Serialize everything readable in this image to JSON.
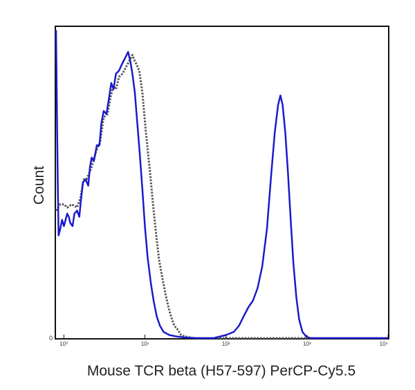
{
  "chart_data": {
    "type": "line",
    "title": "",
    "xlabel": "Mouse TCR beta (H57-597) PerCP-Cy5.5",
    "ylabel": "Count",
    "xscale": "log",
    "xlim": [
      0.8,
      10000
    ],
    "ylim": [
      0,
      100
    ],
    "grid": false,
    "legend": "none",
    "x_ticks": [
      {
        "value": 1,
        "label": "10⁰"
      },
      {
        "value": 10,
        "label": "10¹"
      },
      {
        "value": 100,
        "label": "10²"
      },
      {
        "value": 1000,
        "label": "10³"
      },
      {
        "value": 10000,
        "label": "10⁴"
      }
    ],
    "y_ticks": [
      {
        "value": 0,
        "label": "0"
      }
    ],
    "series": [
      {
        "color": "#555555",
        "style": "dotted",
        "points": [
          [
            0.8,
            41
          ],
          [
            0.9,
            43
          ],
          [
            1.0,
            43
          ],
          [
            1.1,
            42
          ],
          [
            1.25,
            43
          ],
          [
            1.45,
            42
          ],
          [
            1.6,
            45
          ],
          [
            1.75,
            51
          ],
          [
            1.9,
            51
          ],
          [
            2.05,
            53
          ],
          [
            2.2,
            55
          ],
          [
            2.5,
            60
          ],
          [
            2.8,
            63
          ],
          [
            3.1,
            71
          ],
          [
            3.45,
            72
          ],
          [
            3.8,
            78
          ],
          [
            4.1,
            81
          ],
          [
            4.4,
            80
          ],
          [
            4.8,
            84
          ],
          [
            5.3,
            85
          ],
          [
            5.8,
            87
          ],
          [
            6.4,
            89
          ],
          [
            7.0,
            91
          ],
          [
            7.5,
            89
          ],
          [
            7.9,
            88
          ],
          [
            8.5,
            86
          ],
          [
            9.3,
            79
          ],
          [
            10.3,
            66
          ],
          [
            11.5,
            54
          ],
          [
            12.7,
            42
          ],
          [
            13.8,
            33
          ],
          [
            15.0,
            25
          ],
          [
            16.5,
            19
          ],
          [
            18.0,
            14
          ],
          [
            19.5,
            10
          ],
          [
            21,
            7
          ],
          [
            23,
            4
          ],
          [
            25,
            3
          ],
          [
            28,
            1
          ],
          [
            32,
            0.5
          ],
          [
            40,
            0
          ],
          [
            10000,
            0
          ]
        ]
      },
      {
        "color": "#1a1acc",
        "style": "solid",
        "points": [
          [
            0.8,
            99
          ],
          [
            0.84,
            50
          ],
          [
            0.86,
            33
          ],
          [
            0.9,
            35
          ],
          [
            0.95,
            38
          ],
          [
            1.0,
            36
          ],
          [
            1.05,
            38
          ],
          [
            1.1,
            40
          ],
          [
            1.15,
            39
          ],
          [
            1.2,
            37
          ],
          [
            1.28,
            36
          ],
          [
            1.35,
            40
          ],
          [
            1.45,
            41
          ],
          [
            1.55,
            39
          ],
          [
            1.62,
            44
          ],
          [
            1.72,
            50
          ],
          [
            1.85,
            51
          ],
          [
            2.0,
            49
          ],
          [
            2.1,
            55
          ],
          [
            2.2,
            58
          ],
          [
            2.35,
            57
          ],
          [
            2.55,
            62
          ],
          [
            2.75,
            62
          ],
          [
            2.9,
            69
          ],
          [
            3.1,
            73
          ],
          [
            3.35,
            72
          ],
          [
            3.6,
            77
          ],
          [
            3.85,
            82
          ],
          [
            4.1,
            80
          ],
          [
            4.4,
            85
          ],
          [
            4.8,
            86
          ],
          [
            5.2,
            88
          ],
          [
            5.7,
            90
          ],
          [
            6.2,
            92
          ],
          [
            6.6,
            89
          ],
          [
            7.0,
            85
          ],
          [
            7.5,
            79
          ],
          [
            8.0,
            70
          ],
          [
            8.6,
            60
          ],
          [
            9.3,
            48
          ],
          [
            10.0,
            36
          ],
          [
            10.8,
            26
          ],
          [
            11.8,
            18
          ],
          [
            12.8,
            12
          ],
          [
            14.0,
            7
          ],
          [
            15.3,
            4
          ],
          [
            17,
            2
          ],
          [
            20,
            1
          ],
          [
            25,
            0.5
          ],
          [
            32,
            0.2
          ],
          [
            45,
            0
          ],
          [
            70,
            0
          ],
          [
            100,
            1
          ],
          [
            125,
            2
          ],
          [
            145,
            4
          ],
          [
            165,
            7
          ],
          [
            190,
            10
          ],
          [
            215,
            12
          ],
          [
            245,
            16
          ],
          [
            280,
            23
          ],
          [
            320,
            35
          ],
          [
            360,
            52
          ],
          [
            400,
            66
          ],
          [
            440,
            75
          ],
          [
            470,
            78
          ],
          [
            500,
            75
          ],
          [
            540,
            66
          ],
          [
            580,
            54
          ],
          [
            630,
            38
          ],
          [
            680,
            24
          ],
          [
            740,
            13
          ],
          [
            800,
            6
          ],
          [
            880,
            2
          ],
          [
            980,
            0.5
          ],
          [
            1100,
            0
          ],
          [
            10000,
            0
          ]
        ]
      }
    ]
  }
}
